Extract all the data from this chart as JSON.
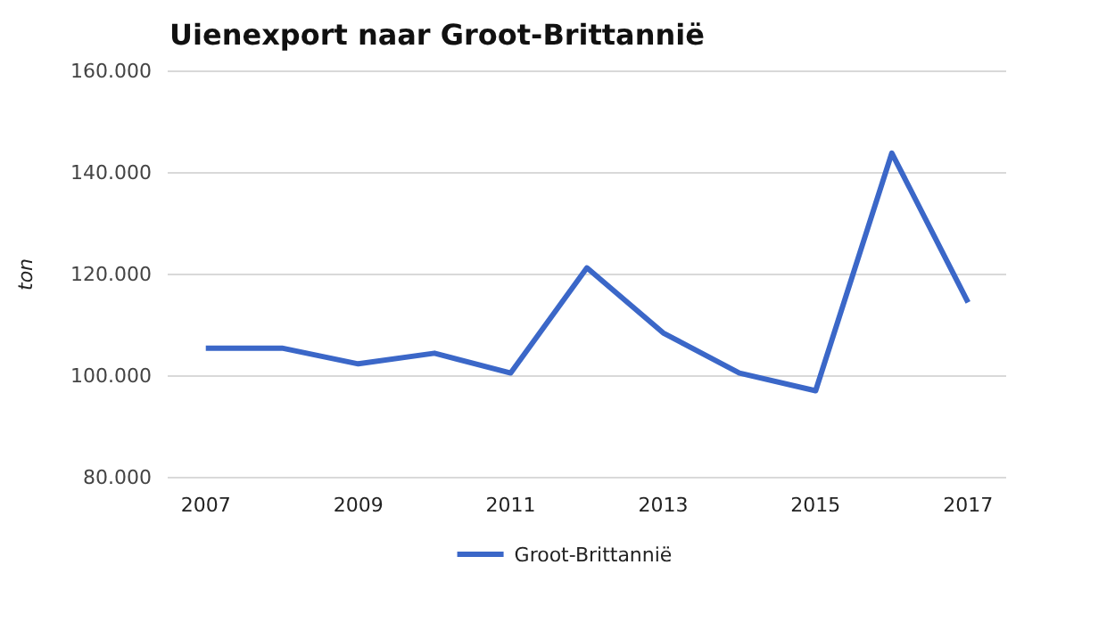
{
  "chart_data": {
    "type": "line",
    "title": "Uienexport naar Groot-Brittannië",
    "ylabel": "ton",
    "x": [
      2007,
      2008,
      2009,
      2010,
      2011,
      2012,
      2013,
      2014,
      2015,
      2016,
      2017
    ],
    "series": [
      {
        "name": "Groot-Brittannië",
        "color": "#3b67c8",
        "values": [
          105500,
          105500,
          102400,
          104500,
          100600,
          121300,
          108500,
          100600,
          97100,
          143900,
          114500
        ]
      }
    ],
    "xlim": [
      2006.5,
      2017.5
    ],
    "xticks": [
      2007,
      2009,
      2011,
      2013,
      2015,
      2017
    ],
    "ylim": [
      80000,
      160000
    ],
    "yticks": [
      {
        "value": 80000,
        "label": "80.000"
      },
      {
        "value": 100000,
        "label": "100.000"
      },
      {
        "value": 120000,
        "label": "120.000"
      },
      {
        "value": 140000,
        "label": "140.000"
      },
      {
        "value": 160000,
        "label": "160.000"
      }
    ],
    "grid": "y",
    "legend": "bottom",
    "marker": "none",
    "line_style": "solid"
  }
}
